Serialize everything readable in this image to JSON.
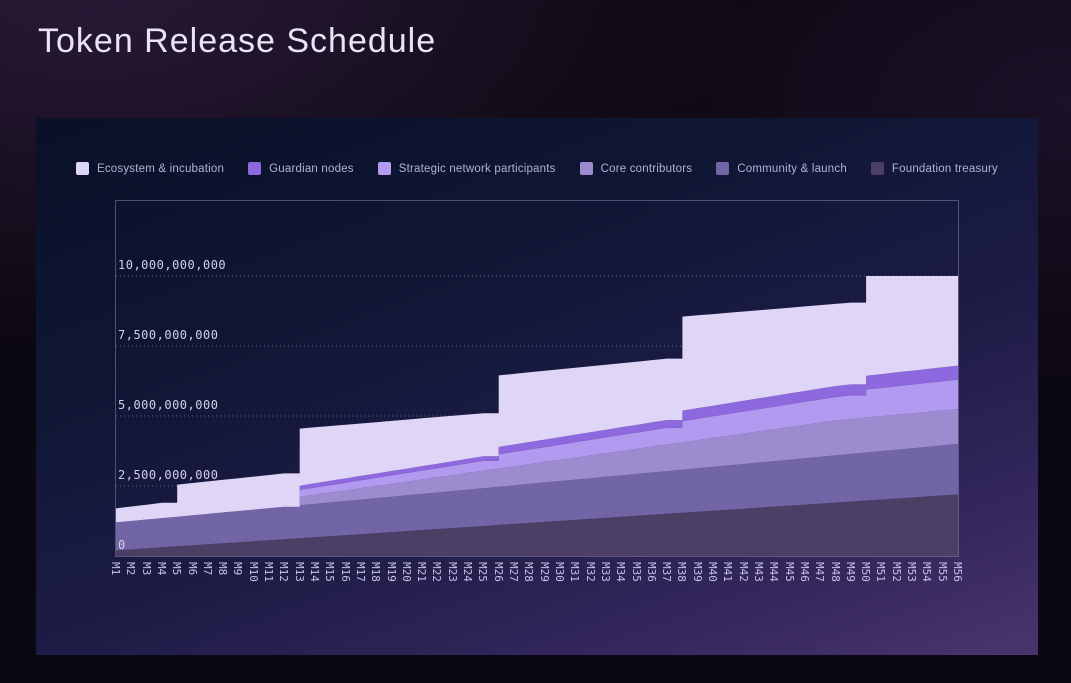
{
  "page": {
    "title": "Token Release Schedule"
  },
  "chart_data": {
    "type": "area",
    "stacked": true,
    "title": "Token Release Schedule",
    "xlabel": "",
    "ylabel": "",
    "x_unit": "month",
    "values_unit": "billions of tokens",
    "legend_position": "top",
    "grid": "dotted horizontal",
    "ylim": [
      0,
      12.68
    ],
    "categories": [
      "M1",
      "M2",
      "M3",
      "M4",
      "M5",
      "M6",
      "M7",
      "M8",
      "M9",
      "M10",
      "M11",
      "M12",
      "M13",
      "M14",
      "M15",
      "M16",
      "M17",
      "M18",
      "M19",
      "M20",
      "M21",
      "M22",
      "M23",
      "M24",
      "M25",
      "M26",
      "M27",
      "M28",
      "M29",
      "M30",
      "M31",
      "M32",
      "M33",
      "M34",
      "M35",
      "M36",
      "M37",
      "M38",
      "M39",
      "M40",
      "M41",
      "M42",
      "M43",
      "M44",
      "M45",
      "M46",
      "M47",
      "M48",
      "M49",
      "M50",
      "M51",
      "M52",
      "M53",
      "M54",
      "M55",
      "M56"
    ],
    "y_ticks": [
      {
        "value": 0,
        "label": "0"
      },
      {
        "value": 2.5,
        "label": "2,500,000,000"
      },
      {
        "value": 5,
        "label": "5,000,000,000"
      },
      {
        "value": 7.5,
        "label": "7,500,000,000"
      },
      {
        "value": 10,
        "label": "10,000,000,000"
      }
    ],
    "series": [
      {
        "name": "Ecosystem & incubation",
        "color": "#ded5f7",
        "values": [
          0.5,
          0.516,
          0.531,
          0.547,
          1.147,
          1.152,
          1.159,
          1.164,
          1.172,
          1.178,
          1.184,
          1.19,
          2.039,
          1.998,
          1.957,
          1.917,
          1.871,
          1.831,
          1.789,
          1.749,
          1.708,
          1.667,
          1.624,
          1.581,
          1.54,
          2.553,
          2.522,
          2.488,
          2.456,
          2.422,
          2.389,
          2.356,
          2.324,
          2.291,
          2.258,
          2.225,
          2.193,
          3.356,
          3.312,
          3.272,
          3.228,
          3.188,
          3.146,
          3.105,
          3.062,
          3.02,
          2.977,
          2.936,
          2.922,
          3.561,
          3.502,
          3.441,
          3.381,
          3.32,
          3.26,
          3.2
        ]
      },
      {
        "name": "Guardian nodes",
        "color": "#8e68de",
        "values": [
          0,
          0,
          0,
          0,
          0,
          0,
          0,
          0,
          0,
          0,
          0,
          0,
          0.15,
          0.151,
          0.152,
          0.153,
          0.155,
          0.156,
          0.157,
          0.158,
          0.159,
          0.16,
          0.162,
          0.163,
          0.164,
          0.265,
          0.266,
          0.267,
          0.269,
          0.27,
          0.271,
          0.272,
          0.273,
          0.274,
          0.276,
          0.277,
          0.278,
          0.379,
          0.38,
          0.381,
          0.383,
          0.384,
          0.385,
          0.386,
          0.387,
          0.388,
          0.39,
          0.391,
          0.392,
          0.493,
          0.494,
          0.495,
          0.496,
          0.498,
          0.499,
          0.5
        ]
      },
      {
        "name": "Strategic network participants",
        "color": "#b29af0",
        "values": [
          0,
          0,
          0,
          0,
          0,
          0,
          0,
          0,
          0,
          0,
          0,
          0,
          0.25,
          0.258,
          0.266,
          0.274,
          0.283,
          0.291,
          0.299,
          0.307,
          0.315,
          0.323,
          0.331,
          0.34,
          0.348,
          0.506,
          0.514,
          0.522,
          0.53,
          0.538,
          0.547,
          0.555,
          0.563,
          0.571,
          0.579,
          0.587,
          0.595,
          0.753,
          0.762,
          0.77,
          0.778,
          0.786,
          0.794,
          0.802,
          0.81,
          0.819,
          0.827,
          0.835,
          0.843,
          1.001,
          1.009,
          1.017,
          1.026,
          1.034,
          1.042,
          1.05
        ]
      },
      {
        "name": "Core contributors",
        "color": "#9c8bcf",
        "values": [
          0,
          0,
          0,
          0,
          0,
          0,
          0,
          0,
          0,
          0,
          0,
          0,
          0.3,
          0.327,
          0.354,
          0.381,
          0.409,
          0.436,
          0.463,
          0.49,
          0.517,
          0.544,
          0.571,
          0.599,
          0.626,
          0.653,
          0.68,
          0.707,
          0.734,
          0.761,
          0.789,
          0.816,
          0.843,
          0.87,
          0.897,
          0.924,
          0.951,
          0.979,
          1.006,
          1.033,
          1.06,
          1.087,
          1.114,
          1.141,
          1.169,
          1.196,
          1.223,
          1.25,
          1.25,
          1.25,
          1.25,
          1.25,
          1.25,
          1.25,
          1.25,
          1.25
        ]
      },
      {
        "name": "Community & launch",
        "color": "#7165a6",
        "values": [
          1.0,
          1.015,
          1.029,
          1.044,
          1.058,
          1.073,
          1.087,
          1.102,
          1.116,
          1.131,
          1.145,
          1.16,
          1.175,
          1.189,
          1.204,
          1.218,
          1.233,
          1.247,
          1.262,
          1.276,
          1.291,
          1.305,
          1.32,
          1.335,
          1.349,
          1.364,
          1.378,
          1.393,
          1.407,
          1.422,
          1.436,
          1.451,
          1.465,
          1.48,
          1.495,
          1.509,
          1.524,
          1.538,
          1.553,
          1.567,
          1.582,
          1.596,
          1.611,
          1.625,
          1.64,
          1.655,
          1.669,
          1.684,
          1.698,
          1.713,
          1.727,
          1.742,
          1.756,
          1.771,
          1.785,
          1.8
        ]
      },
      {
        "name": "Foundation treasury",
        "color": "#4b3f66",
        "values": [
          0.2,
          0.236,
          0.273,
          0.309,
          0.345,
          0.382,
          0.418,
          0.455,
          0.491,
          0.527,
          0.564,
          0.6,
          0.636,
          0.673,
          0.709,
          0.745,
          0.782,
          0.818,
          0.855,
          0.891,
          0.927,
          0.964,
          1.0,
          1.036,
          1.073,
          1.109,
          1.145,
          1.182,
          1.218,
          1.255,
          1.291,
          1.327,
          1.364,
          1.4,
          1.436,
          1.473,
          1.509,
          1.545,
          1.582,
          1.618,
          1.655,
          1.691,
          1.727,
          1.764,
          1.8,
          1.836,
          1.873,
          1.909,
          1.945,
          1.982,
          2.018,
          2.055,
          2.091,
          2.127,
          2.164,
          2.2
        ]
      }
    ]
  }
}
